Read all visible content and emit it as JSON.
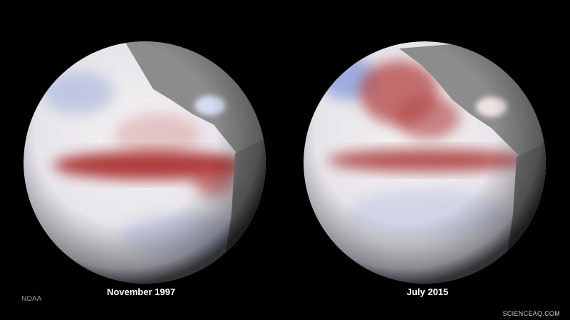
{
  "labels": {
    "left": "November 1997",
    "right": "July 2015"
  },
  "credit": "NOAA",
  "watermark": "SCIENCEAQ.COM"
}
